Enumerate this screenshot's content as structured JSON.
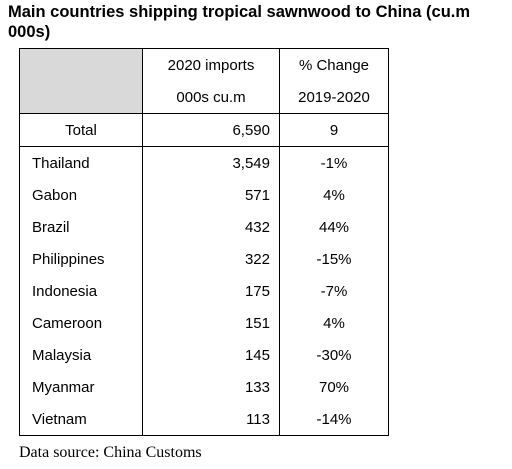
{
  "title": "Main countries shipping tropical sawnwood to China (cu.m 000s)",
  "header": {
    "col2_line1": "2020 imports",
    "col2_line2": "000s cu.m",
    "col3_line1": "% Change",
    "col3_line2": "2019-2020"
  },
  "total": {
    "label": "Total",
    "imports": "6,590",
    "change": "9"
  },
  "rows": [
    {
      "country": "Thailand",
      "imports": "3,549",
      "change": "-1%"
    },
    {
      "country": "Gabon",
      "imports": "571",
      "change": "4%"
    },
    {
      "country": "Brazil",
      "imports": "432",
      "change": "44%"
    },
    {
      "country": "Philippines",
      "imports": "322",
      "change": "-15%"
    },
    {
      "country": "Indonesia",
      "imports": "175",
      "change": "-7%"
    },
    {
      "country": "Cameroon",
      "imports": "151",
      "change": "4%"
    },
    {
      "country": "Malaysia",
      "imports": "145",
      "change": "-30%"
    },
    {
      "country": "Myanmar",
      "imports": "133",
      "change": "70%"
    },
    {
      "country": "Vietnam",
      "imports": "113",
      "change": "-14%"
    }
  ],
  "source": "Data source: China Customs",
  "colors": {
    "header_shade": "#d9d9d9"
  }
}
